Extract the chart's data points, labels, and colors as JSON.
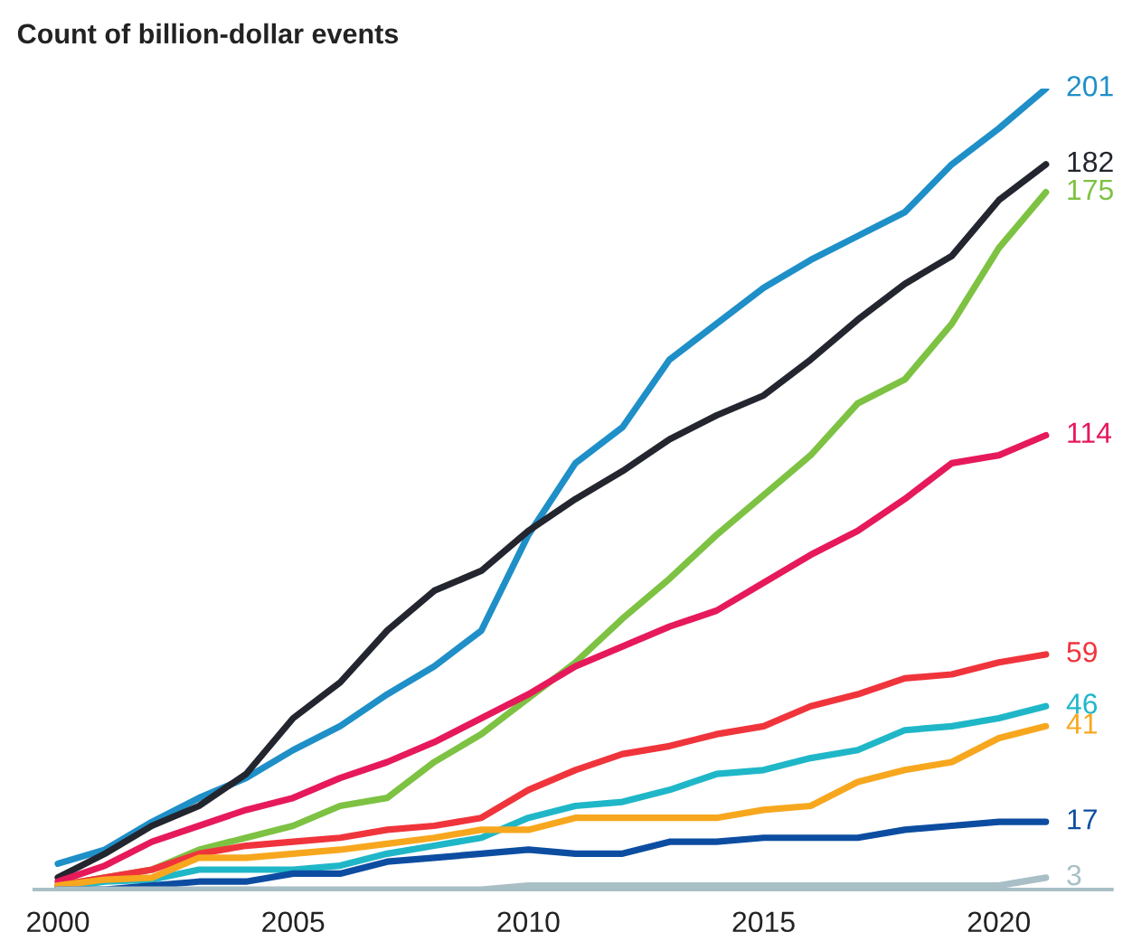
{
  "chart_data": {
    "type": "line",
    "title": "Count of billion-dollar events",
    "x": [
      2000,
      2001,
      2002,
      2003,
      2004,
      2005,
      2006,
      2007,
      2008,
      2009,
      2010,
      2011,
      2012,
      2013,
      2014,
      2015,
      2016,
      2017,
      2018,
      2019,
      2020,
      2021
    ],
    "xlim": [
      1999.5,
      2022.4
    ],
    "xticks": [
      2000,
      2005,
      2010,
      2015,
      2020
    ],
    "tick_labels": "x",
    "grid": false,
    "legend": false,
    "marker": "none",
    "line_style": "solid",
    "series": [
      {
        "color": "#1f8fc8",
        "values": [
          6.5,
          10,
          17,
          23,
          28,
          35,
          41,
          49,
          56,
          65,
          89,
          107,
          116,
          133,
          142,
          151,
          158,
          164,
          170,
          182,
          191,
          201
        ],
        "value_labels": [
          null,
          null,
          null,
          null,
          null,
          null,
          null,
          null,
          null,
          null,
          null,
          null,
          null,
          null,
          null,
          null,
          null,
          null,
          null,
          null,
          null,
          "201"
        ]
      },
      {
        "color": "#23262f",
        "values": [
          3,
          9,
          16,
          21,
          29,
          43,
          52,
          65,
          75,
          80,
          90,
          98,
          105,
          113,
          119,
          124,
          133,
          143,
          152,
          159,
          173,
          182
        ],
        "value_labels": [
          null,
          null,
          null,
          null,
          null,
          null,
          null,
          null,
          null,
          null,
          null,
          null,
          null,
          null,
          null,
          null,
          null,
          null,
          null,
          null,
          null,
          "182"
        ]
      },
      {
        "color": "#7dc242",
        "values": [
          1,
          3,
          5,
          10,
          13,
          16,
          21,
          23,
          32,
          39,
          48,
          57,
          68,
          78,
          89,
          99,
          109,
          122,
          128,
          142,
          161,
          175
        ],
        "value_labels": [
          null,
          null,
          null,
          null,
          null,
          null,
          null,
          null,
          null,
          null,
          null,
          null,
          null,
          null,
          null,
          null,
          null,
          null,
          null,
          null,
          null,
          "175"
        ]
      },
      {
        "color": "#e6195b",
        "values": [
          2,
          6,
          12,
          16,
          20,
          23,
          28,
          32,
          37,
          43,
          49,
          56,
          61,
          66,
          70,
          77,
          84,
          90,
          98,
          107,
          109,
          114
        ],
        "value_labels": [
          null,
          null,
          null,
          null,
          null,
          null,
          null,
          null,
          null,
          null,
          null,
          null,
          null,
          null,
          null,
          null,
          null,
          null,
          null,
          null,
          null,
          "114"
        ]
      },
      {
        "color": "#f0343c",
        "values": [
          1,
          3,
          5,
          9,
          11,
          12,
          13,
          15,
          16,
          18,
          25,
          30,
          34,
          36,
          39,
          41,
          46,
          49,
          53,
          54,
          57,
          59
        ],
        "value_labels": [
          null,
          null,
          null,
          null,
          null,
          null,
          null,
          null,
          null,
          null,
          null,
          null,
          null,
          null,
          null,
          null,
          null,
          null,
          null,
          null,
          null,
          "59"
        ]
      },
      {
        "color": "#1fb7c8",
        "values": [
          0.5,
          2,
          2.5,
          5,
          5,
          5,
          6,
          9,
          11,
          13,
          18,
          21,
          22,
          25,
          29,
          30,
          33,
          35,
          40,
          41,
          43,
          46
        ],
        "value_labels": [
          null,
          null,
          null,
          null,
          null,
          null,
          null,
          null,
          null,
          null,
          null,
          null,
          null,
          null,
          null,
          null,
          null,
          null,
          null,
          null,
          null,
          "46"
        ]
      },
      {
        "color": "#f7a71e",
        "values": [
          1,
          2.5,
          3,
          8,
          8,
          9,
          10,
          11.5,
          13,
          15,
          15,
          18,
          18,
          18,
          18,
          20,
          21,
          27,
          30,
          32,
          38,
          41
        ],
        "value_labels": [
          null,
          null,
          null,
          null,
          null,
          null,
          null,
          null,
          null,
          null,
          null,
          null,
          null,
          null,
          null,
          null,
          null,
          null,
          null,
          null,
          null,
          "41"
        ]
      },
      {
        "color": "#0d4da1",
        "values": [
          0,
          0,
          1,
          2,
          2,
          4,
          4,
          7,
          8,
          9,
          10,
          9,
          9,
          12,
          12,
          13,
          13,
          13,
          15,
          16,
          17,
          17
        ],
        "value_labels": [
          null,
          null,
          null,
          null,
          null,
          null,
          null,
          null,
          null,
          null,
          null,
          null,
          null,
          null,
          null,
          null,
          null,
          null,
          null,
          null,
          null,
          "17"
        ]
      },
      {
        "color": "#a9bfc6",
        "values": [
          0,
          0,
          0,
          0,
          0,
          0,
          0,
          0,
          0,
          0,
          1,
          1,
          1,
          1,
          1,
          1,
          1,
          1,
          1,
          1,
          1,
          3
        ],
        "value_labels": [
          null,
          null,
          null,
          null,
          null,
          null,
          null,
          null,
          null,
          null,
          null,
          null,
          null,
          null,
          null,
          null,
          null,
          null,
          null,
          null,
          null,
          "3"
        ]
      }
    ]
  }
}
